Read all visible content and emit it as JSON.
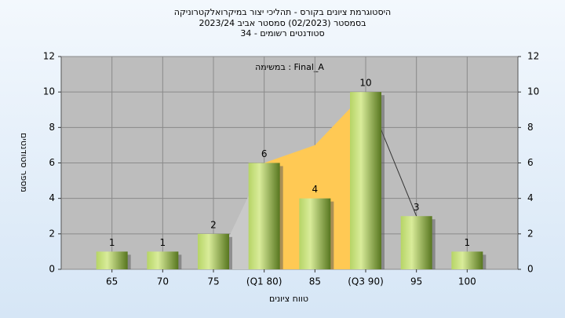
{
  "chart_data": {
    "type": "bar",
    "title": "היסטוגרמת ציונים בקורס - תהליכי יצור במיקרואלקטרוניקה",
    "subtitle": "בסמסטר  (02/2023)  סמסטר אביב 2023/24",
    "subtitle2": "סטודנטים רשומים - 34",
    "annotation": "במשימה : Final_A",
    "x_label": "טווח ציונים",
    "y_label": "מספר סטודנטים",
    "categories": [
      "65",
      "70",
      "75",
      "(Q1 80)",
      "85",
      "(Q3 90)",
      "95",
      "100"
    ],
    "values": [
      1,
      1,
      2,
      6,
      4,
      10,
      3,
      1
    ],
    "color": "#8fb84a",
    "trend_values": [
      null,
      null,
      0,
      6,
      7,
      10,
      3,
      null
    ],
    "iqr_color": "#ffc954",
    "outer_color": "#c9c9c9",
    "ylim": [
      0,
      12
    ],
    "yticks": [
      0,
      2,
      4,
      6,
      8,
      10,
      12
    ],
    "y2lim": [
      0,
      12
    ],
    "y2ticks": [
      0,
      2,
      4,
      6,
      8,
      10,
      12
    ],
    "grid": true
  }
}
